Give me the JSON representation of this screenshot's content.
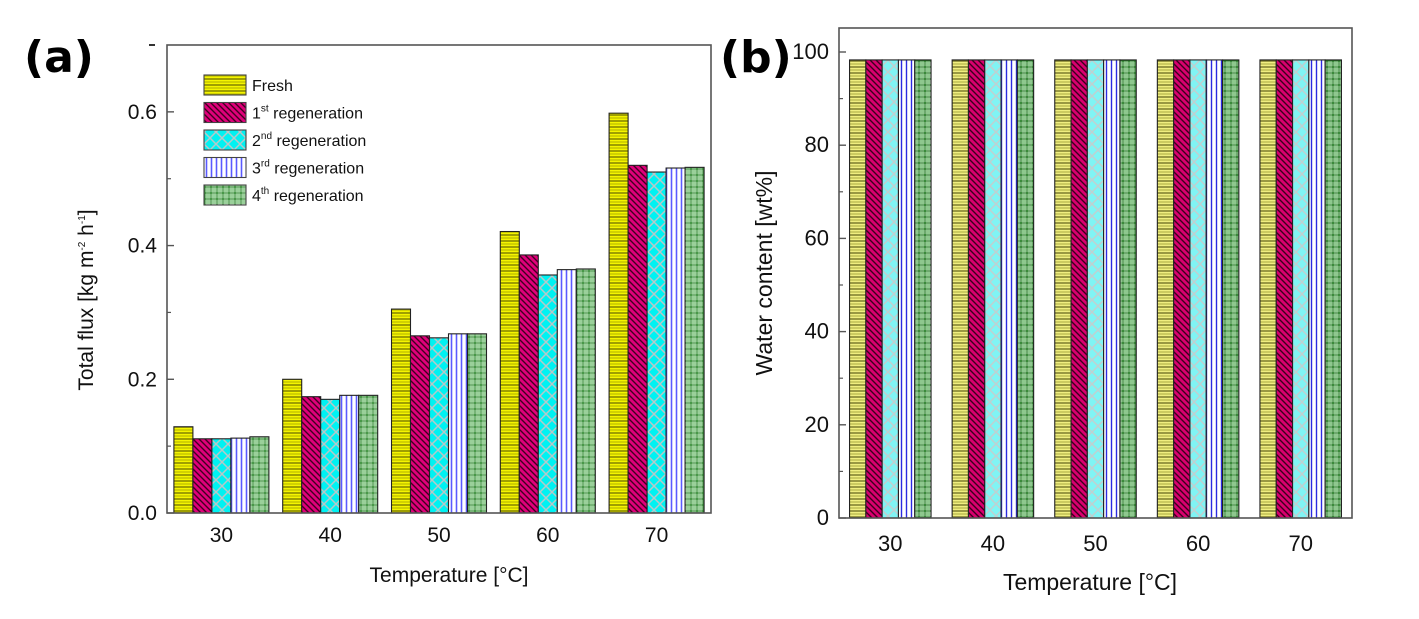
{
  "chart_data": [
    {
      "panel_label": "(a)",
      "type": "bar",
      "categories": [
        "30",
        "40",
        "50",
        "60",
        "70"
      ],
      "xlabel": "Temperature [°C]",
      "ylabel_parts": [
        "Total flux [kg m",
        "-2",
        " h",
        "-1",
        "]"
      ],
      "ylim": [
        0.0,
        0.7
      ],
      "yticks": [
        "0.0",
        "0.2",
        "0.4",
        "0.6"
      ],
      "ytick_values": [
        0.0,
        0.2,
        0.4,
        0.6
      ],
      "legend_position": "top-left",
      "series": [
        {
          "name": "Fresh",
          "name_main": "Fresh",
          "name_sup": "",
          "name_rest": "",
          "pattern": "hlines",
          "color": "#e0e000",
          "values": [
            0.129,
            0.2,
            0.305,
            0.421,
            0.598
          ]
        },
        {
          "name": "1st regeneration",
          "name_main": "1",
          "name_sup": "st",
          "name_rest": " regeneration",
          "pattern": "diag",
          "color": "#d0006a",
          "values": [
            0.111,
            0.174,
            0.265,
            0.386,
            0.52
          ]
        },
        {
          "name": "2nd regeneration",
          "name_main": "2",
          "name_sup": "nd",
          "name_rest": " regeneration",
          "pattern": "cross",
          "color": "#00f0f0",
          "values": [
            0.111,
            0.17,
            0.262,
            0.356,
            0.51
          ]
        },
        {
          "name": "3rd regeneration",
          "name_main": "3",
          "name_sup": "rd",
          "name_rest": " regeneration",
          "pattern": "vlines",
          "color": "#a0a0ff",
          "values": [
            0.112,
            0.176,
            0.268,
            0.364,
            0.516
          ]
        },
        {
          "name": "4th regeneration",
          "name_main": "4",
          "name_sup": "th",
          "name_rest": " regeneration",
          "pattern": "grid",
          "color": "#3a9a3a",
          "values": [
            0.114,
            0.176,
            0.268,
            0.365,
            0.517
          ]
        }
      ]
    },
    {
      "panel_label": "(b)",
      "type": "bar",
      "categories": [
        "30",
        "40",
        "50",
        "60",
        "70"
      ],
      "xlabel": "Temperature [°C]",
      "ylabel": "Water content [wt%]",
      "ylim": [
        0,
        100
      ],
      "yticks": [
        "0",
        "20",
        "40",
        "60",
        "80",
        "100"
      ],
      "ytick_values": [
        0,
        20,
        40,
        60,
        80,
        100
      ],
      "series": [
        {
          "name": "Fresh",
          "values": [
            98.3,
            98.3,
            98.3,
            98.3,
            98.3
          ]
        },
        {
          "name": "1st regeneration",
          "values": [
            98.3,
            98.3,
            98.3,
            98.3,
            98.3
          ]
        },
        {
          "name": "2nd regeneration",
          "values": [
            98.3,
            98.3,
            98.3,
            98.3,
            98.3
          ]
        },
        {
          "name": "3rd regeneration",
          "values": [
            98.3,
            98.3,
            98.3,
            98.3,
            98.3
          ]
        },
        {
          "name": "4th regeneration",
          "values": [
            98.3,
            98.3,
            98.3,
            98.3,
            98.3
          ]
        }
      ]
    }
  ]
}
